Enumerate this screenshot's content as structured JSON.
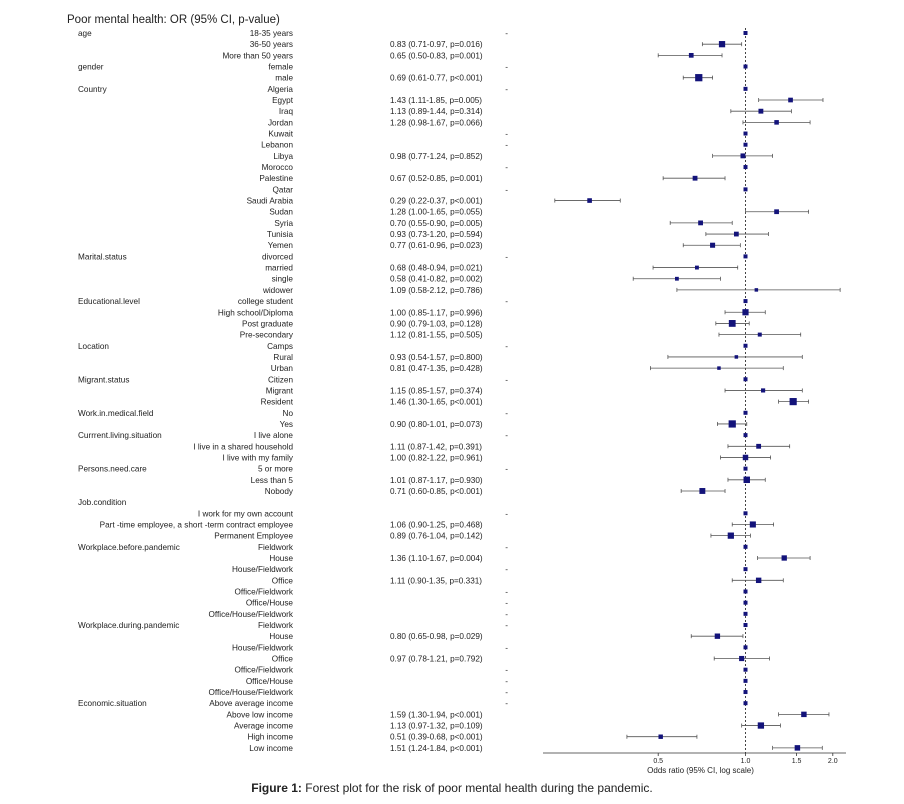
{
  "chart_data": {
    "type": "forest",
    "title": "Poor mental health: OR (95% CI, p-value)",
    "x_axis": {
      "label": "Odds ratio (95% CI, log scale)",
      "scale": "log",
      "ticks": [
        0.5,
        1.0,
        1.5,
        2.0
      ],
      "tick_labels": [
        "0.5",
        "1.0",
        "1.5",
        "2.0"
      ],
      "reference_line": 1.0
    },
    "rows": [
      {
        "group": "age",
        "label": "18-35 years",
        "text": "-",
        "or": 1,
        "lo": null,
        "hi": null,
        "ref": true
      },
      {
        "group": "",
        "label": "36-50 years",
        "text": "0.83 (0.71-0.97, p=0.016)",
        "or": 0.83,
        "lo": 0.71,
        "hi": 0.97
      },
      {
        "group": "",
        "label": "More than 50 years",
        "text": "0.65 (0.50-0.83, p=0.001)",
        "or": 0.65,
        "lo": 0.5,
        "hi": 0.83
      },
      {
        "group": "gender",
        "label": "female",
        "text": "-",
        "or": 1,
        "lo": null,
        "hi": null,
        "ref": true
      },
      {
        "group": "",
        "label": "male",
        "text": "0.69 (0.61-0.77, p<0.001)",
        "or": 0.69,
        "lo": 0.61,
        "hi": 0.77
      },
      {
        "group": "Country",
        "label": "Algeria",
        "text": "-",
        "or": 1,
        "lo": null,
        "hi": null,
        "ref": true
      },
      {
        "group": "",
        "label": "Egypt",
        "text": "1.43 (1.11-1.85, p=0.005)",
        "or": 1.43,
        "lo": 1.11,
        "hi": 1.85
      },
      {
        "group": "",
        "label": "Iraq",
        "text": "1.13 (0.89-1.44, p=0.314)",
        "or": 1.13,
        "lo": 0.89,
        "hi": 1.44
      },
      {
        "group": "",
        "label": "Jordan",
        "text": "1.28 (0.98-1.67, p=0.066)",
        "or": 1.28,
        "lo": 0.98,
        "hi": 1.67
      },
      {
        "group": "",
        "label": "Kuwait",
        "text": "-",
        "or": 1,
        "lo": null,
        "hi": null,
        "ref": true
      },
      {
        "group": "",
        "label": "Lebanon",
        "text": "-",
        "or": 1,
        "lo": null,
        "hi": null,
        "ref": true
      },
      {
        "group": "",
        "label": "Libya",
        "text": "0.98 (0.77-1.24, p=0.852)",
        "or": 0.98,
        "lo": 0.77,
        "hi": 1.24
      },
      {
        "group": "",
        "label": "Morocco",
        "text": "-",
        "or": 1,
        "lo": null,
        "hi": null,
        "ref": true
      },
      {
        "group": "",
        "label": "Palestine",
        "text": "0.67 (0.52-0.85, p=0.001)",
        "or": 0.67,
        "lo": 0.52,
        "hi": 0.85
      },
      {
        "group": "",
        "label": "Qatar",
        "text": "-",
        "or": 1,
        "lo": null,
        "hi": null,
        "ref": true
      },
      {
        "group": "",
        "label": "Saudi Arabia",
        "text": "0.29 (0.22-0.37, p<0.001)",
        "or": 0.29,
        "lo": 0.22,
        "hi": 0.37
      },
      {
        "group": "",
        "label": "Sudan",
        "text": "1.28 (1.00-1.65, p=0.055)",
        "or": 1.28,
        "lo": 1.0,
        "hi": 1.65
      },
      {
        "group": "",
        "label": "Syria",
        "text": "0.70 (0.55-0.90, p=0.005)",
        "or": 0.7,
        "lo": 0.55,
        "hi": 0.9
      },
      {
        "group": "",
        "label": "Tunisia",
        "text": "0.93 (0.73-1.20, p=0.594)",
        "or": 0.93,
        "lo": 0.73,
        "hi": 1.2
      },
      {
        "group": "",
        "label": "Yemen",
        "text": "0.77 (0.61-0.96, p=0.023)",
        "or": 0.77,
        "lo": 0.61,
        "hi": 0.96
      },
      {
        "group": "Marital.status",
        "label": "divorced",
        "text": "-",
        "or": 1,
        "lo": null,
        "hi": null,
        "ref": true
      },
      {
        "group": "",
        "label": "married",
        "text": "0.68 (0.48-0.94, p=0.021)",
        "or": 0.68,
        "lo": 0.48,
        "hi": 0.94
      },
      {
        "group": "",
        "label": "single",
        "text": "0.58 (0.41-0.82, p=0.002)",
        "or": 0.58,
        "lo": 0.41,
        "hi": 0.82
      },
      {
        "group": "",
        "label": "widower",
        "text": "1.09 (0.58-2.12, p=0.786)",
        "or": 1.09,
        "lo": 0.58,
        "hi": 2.12
      },
      {
        "group": "Educational.level",
        "label": "college student",
        "text": "-",
        "or": 1,
        "lo": null,
        "hi": null,
        "ref": true
      },
      {
        "group": "",
        "label": "High school/Diploma",
        "text": "1.00 (0.85-1.17, p=0.996)",
        "or": 1.0,
        "lo": 0.85,
        "hi": 1.17
      },
      {
        "group": "",
        "label": "Post graduate",
        "text": "0.90 (0.79-1.03, p=0.128)",
        "or": 0.9,
        "lo": 0.79,
        "hi": 1.03
      },
      {
        "group": "",
        "label": "Pre-secondary",
        "text": "1.12 (0.81-1.55, p=0.505)",
        "or": 1.12,
        "lo": 0.81,
        "hi": 1.55
      },
      {
        "group": "Location",
        "label": "Camps",
        "text": "-",
        "or": 1,
        "lo": null,
        "hi": null,
        "ref": true
      },
      {
        "group": "",
        "label": "Rural",
        "text": "0.93 (0.54-1.57, p=0.800)",
        "or": 0.93,
        "lo": 0.54,
        "hi": 1.57
      },
      {
        "group": "",
        "label": "Urban",
        "text": "0.81 (0.47-1.35, p=0.428)",
        "or": 0.81,
        "lo": 0.47,
        "hi": 1.35
      },
      {
        "group": "Migrant.status",
        "label": "Citizen",
        "text": "-",
        "or": 1,
        "lo": null,
        "hi": null,
        "ref": true
      },
      {
        "group": "",
        "label": "Migrant",
        "text": "1.15 (0.85-1.57, p=0.374)",
        "or": 1.15,
        "lo": 0.85,
        "hi": 1.57
      },
      {
        "group": "",
        "label": "Resident",
        "text": "1.46 (1.30-1.65, p<0.001)",
        "or": 1.46,
        "lo": 1.3,
        "hi": 1.65
      },
      {
        "group": "Work.in.medical.field",
        "label": "No",
        "text": "-",
        "or": 1,
        "lo": null,
        "hi": null,
        "ref": true
      },
      {
        "group": "",
        "label": "Yes",
        "text": "0.90 (0.80-1.01, p=0.073)",
        "or": 0.9,
        "lo": 0.8,
        "hi": 1.01
      },
      {
        "group": "Currrent.living.situation",
        "label": "I live alone",
        "text": "-",
        "or": 1,
        "lo": null,
        "hi": null,
        "ref": true
      },
      {
        "group": "",
        "label": "I live in a shared household",
        "text": "1.11 (0.87-1.42, p=0.391)",
        "or": 1.11,
        "lo": 0.87,
        "hi": 1.42
      },
      {
        "group": "",
        "label": "I live with my family",
        "text": "1.00 (0.82-1.22, p=0.961)",
        "or": 1.0,
        "lo": 0.82,
        "hi": 1.22
      },
      {
        "group": "Persons.need.care",
        "label": "5 or more",
        "text": "-",
        "or": 1,
        "lo": null,
        "hi": null,
        "ref": true
      },
      {
        "group": "",
        "label": "Less than 5",
        "text": "1.01 (0.87-1.17, p=0.930)",
        "or": 1.01,
        "lo": 0.87,
        "hi": 1.17
      },
      {
        "group": "",
        "label": "Nobody",
        "text": "0.71 (0.60-0.85, p<0.001)",
        "or": 0.71,
        "lo": 0.6,
        "hi": 0.85
      },
      {
        "group": "Job.condition",
        "label": "",
        "text": "",
        "or": null,
        "lo": null,
        "hi": null
      },
      {
        "group": "",
        "label": "I work for my own account",
        "text": "-",
        "or": 1,
        "lo": null,
        "hi": null,
        "ref": true
      },
      {
        "group": "",
        "label": "Part -time employee, a short -term contract employee",
        "text": "1.06 (0.90-1.25, p=0.468)",
        "or": 1.06,
        "lo": 0.9,
        "hi": 1.25
      },
      {
        "group": "",
        "label": "Permanent Employee",
        "text": "0.89 (0.76-1.04, p=0.142)",
        "or": 0.89,
        "lo": 0.76,
        "hi": 1.04
      },
      {
        "group": "Workplace.before.pandemic",
        "label": "Fieldwork",
        "text": "-",
        "or": 1,
        "lo": null,
        "hi": null,
        "ref": true
      },
      {
        "group": "",
        "label": "House",
        "text": "1.36 (1.10-1.67, p=0.004)",
        "or": 1.36,
        "lo": 1.1,
        "hi": 1.67
      },
      {
        "group": "",
        "label": "House/Fieldwork",
        "text": "-",
        "or": 1,
        "lo": null,
        "hi": null,
        "ref": true
      },
      {
        "group": "",
        "label": "Office",
        "text": "1.11 (0.90-1.35, p=0.331)",
        "or": 1.11,
        "lo": 0.9,
        "hi": 1.35
      },
      {
        "group": "",
        "label": "Office/Fieldwork",
        "text": "-",
        "or": 1,
        "lo": null,
        "hi": null,
        "ref": true
      },
      {
        "group": "",
        "label": "Office/House",
        "text": "-",
        "or": 1,
        "lo": null,
        "hi": null,
        "ref": true
      },
      {
        "group": "",
        "label": "Office/House/Fieldwork",
        "text": "-",
        "or": 1,
        "lo": null,
        "hi": null,
        "ref": true
      },
      {
        "group": "Workplace.during.pandemic",
        "label": "Fieldwork",
        "text": "-",
        "or": 1,
        "lo": null,
        "hi": null,
        "ref": true
      },
      {
        "group": "",
        "label": "House",
        "text": "0.80 (0.65-0.98, p=0.029)",
        "or": 0.8,
        "lo": 0.65,
        "hi": 0.98
      },
      {
        "group": "",
        "label": "House/Fieldwork",
        "text": "-",
        "or": 1,
        "lo": null,
        "hi": null,
        "ref": true
      },
      {
        "group": "",
        "label": "Office",
        "text": "0.97 (0.78-1.21, p=0.792)",
        "or": 0.97,
        "lo": 0.78,
        "hi": 1.21
      },
      {
        "group": "",
        "label": "Office/Fieldwork",
        "text": "-",
        "or": 1,
        "lo": null,
        "hi": null,
        "ref": true
      },
      {
        "group": "",
        "label": "Office/House",
        "text": "-",
        "or": 1,
        "lo": null,
        "hi": null,
        "ref": true
      },
      {
        "group": "",
        "label": "Office/House/Fieldwork",
        "text": "-",
        "or": 1,
        "lo": null,
        "hi": null,
        "ref": true
      },
      {
        "group": "Economic.situation",
        "label": "Above average income",
        "text": "-",
        "or": 1,
        "lo": null,
        "hi": null,
        "ref": true
      },
      {
        "group": "",
        "label": "Above low income",
        "text": "1.59 (1.30-1.94, p<0.001)",
        "or": 1.59,
        "lo": 1.3,
        "hi": 1.94
      },
      {
        "group": "",
        "label": "Average income",
        "text": "1.13 (0.97-1.32, p=0.109)",
        "or": 1.13,
        "lo": 0.97,
        "hi": 1.32
      },
      {
        "group": "",
        "label": "High income",
        "text": "0.51 (0.39-0.68, p<0.001)",
        "or": 0.51,
        "lo": 0.39,
        "hi": 0.68
      },
      {
        "group": "",
        "label": "Low income",
        "text": "1.51 (1.24-1.84, p<0.001)",
        "or": 1.51,
        "lo": 1.24,
        "hi": 1.84
      }
    ],
    "colors": {
      "marker": "#13137a",
      "whisker": "#555555",
      "reference": "#444444"
    }
  },
  "caption": {
    "label": "Figure 1:",
    "text": " Forest plot for the risk of poor mental health during the pandemic."
  }
}
